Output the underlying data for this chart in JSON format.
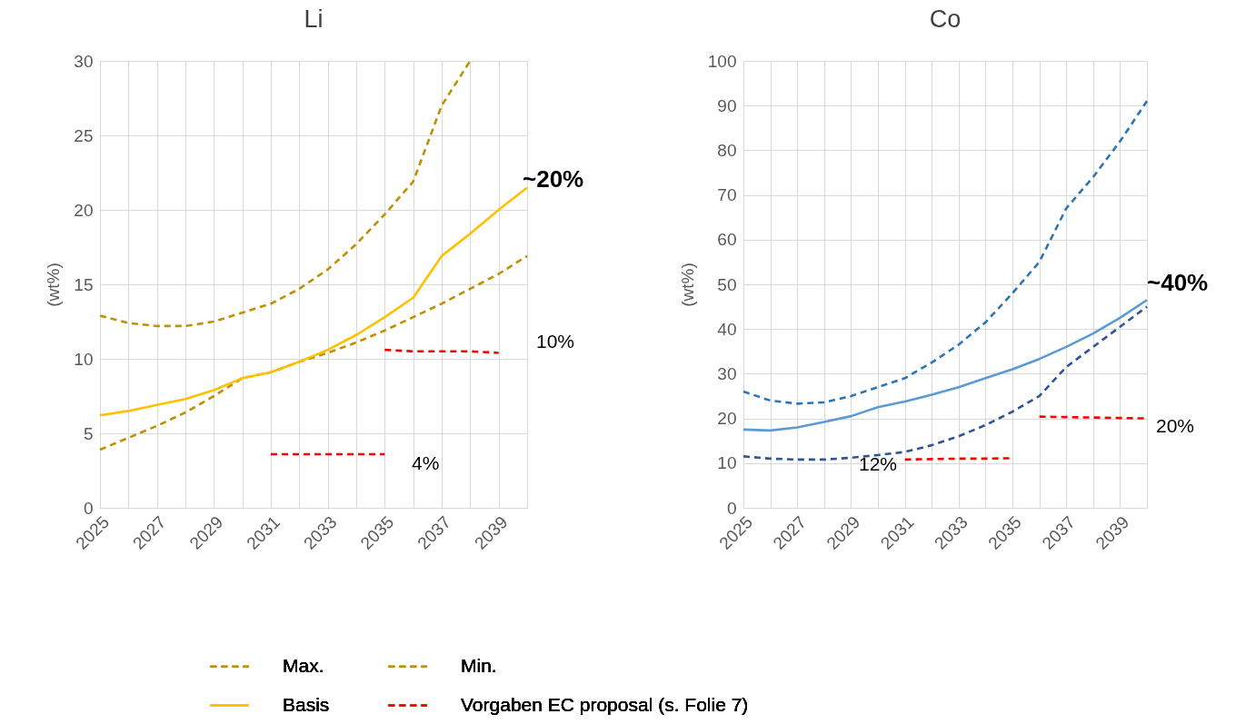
{
  "chart_data": [
    {
      "type": "line",
      "title": "Li",
      "ylabel": "(wt%)",
      "categories": [
        "2025",
        null,
        "2027",
        null,
        "2029",
        null,
        "2031",
        null,
        "2033",
        null,
        "2035",
        null,
        "2037",
        null,
        "2039",
        null
      ],
      "ylim": [
        0,
        30
      ],
      "yticks": [
        0,
        5,
        10,
        15,
        20,
        25,
        30
      ],
      "grid": true,
      "legend": "bottom",
      "marker": "none",
      "series": [
        {
          "name": "Max.",
          "color": "#bf9000",
          "line_style": "dashed",
          "values": [
            12.9,
            12.4,
            12.2,
            12.2,
            12.5,
            13.1,
            13.7,
            14.7,
            16.0,
            17.7,
            19.7,
            21.9,
            27.0,
            30,
            null,
            null
          ]
        },
        {
          "name": "Min.",
          "color": "#bf9000",
          "line_style": "dashed",
          "values": [
            3.9,
            4.7,
            5.5,
            6.4,
            7.5,
            8.7,
            9.1,
            9.8,
            10.4,
            11.1,
            11.9,
            12.8,
            13.7,
            14.7,
            15.7,
            16.9
          ]
        },
        {
          "name": "Basis",
          "color": "#ffc000",
          "line_style": "solid",
          "values": [
            6.2,
            6.5,
            6.9,
            7.3,
            7.9,
            8.7,
            9.1,
            9.8,
            10.6,
            11.6,
            12.8,
            14.1,
            16.9,
            18.4,
            20.0,
            21.5
          ]
        },
        {
          "name": "Vorgaben EC proposal (s. Folie 7)",
          "color": "#ff0000",
          "line_style": "dashed",
          "values": [
            null,
            null,
            null,
            null,
            null,
            null,
            3.6,
            3.6,
            3.6,
            3.6,
            3.6,
            null,
            null,
            null,
            null,
            null
          ]
        },
        {
          "color": "#ff0000",
          "line_style": "dashed",
          "values": [
            null,
            null,
            null,
            null,
            null,
            null,
            null,
            null,
            null,
            null,
            10.6,
            10.5,
            10.5,
            10.5,
            10.4,
            null
          ]
        }
      ],
      "annotations": [
        "~20%",
        "10%",
        "4%"
      ]
    },
    {
      "type": "line",
      "title": "Co",
      "ylabel": "(wt%)",
      "categories": [
        "2025",
        null,
        "2027",
        null,
        "2029",
        null,
        "2031",
        null,
        "2033",
        null,
        "2035",
        null,
        "2037",
        null,
        "2039",
        null
      ],
      "ylim": [
        0,
        100
      ],
      "yticks": [
        0,
        10,
        20,
        30,
        40,
        50,
        60,
        70,
        80,
        90,
        100
      ],
      "grid": true,
      "marker": "none",
      "series": [
        {
          "color": "#2e75b6",
          "line_style": "dashed",
          "values": [
            26,
            24,
            23.3,
            23.6,
            25,
            27,
            29,
            32.5,
            36.5,
            41.5,
            48,
            55,
            67,
            74,
            82,
            91
          ]
        },
        {
          "color": "#2f5597",
          "line_style": "dashed",
          "values": [
            11.5,
            11,
            10.8,
            10.8,
            11.2,
            11.8,
            12.5,
            14,
            16,
            18.5,
            21.5,
            25,
            31.5,
            36,
            40.5,
            45
          ]
        },
        {
          "color": "#5b9bd5",
          "line_style": "solid",
          "values": [
            17.5,
            17.3,
            18,
            19.2,
            20.5,
            22.5,
            23.8,
            25.3,
            27,
            29,
            31,
            33.3,
            36,
            39,
            42.5,
            46.5
          ]
        },
        {
          "color": "#ff0000",
          "line_style": "dashed",
          "values": [
            null,
            null,
            null,
            null,
            null,
            null,
            10.8,
            10.9,
            11,
            11,
            11.1,
            null,
            null,
            null,
            null,
            null
          ]
        },
        {
          "color": "#ff0000",
          "line_style": "dashed",
          "values": [
            null,
            null,
            null,
            null,
            null,
            null,
            null,
            null,
            null,
            null,
            null,
            20.4,
            20.3,
            20.2,
            20.1,
            20.0
          ]
        }
      ],
      "annotations": [
        "~40%",
        "20%",
        "12%"
      ]
    }
  ]
}
